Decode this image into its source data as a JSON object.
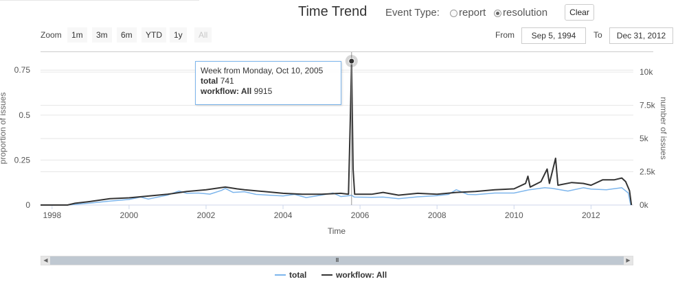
{
  "header": {
    "title": "Time Trend",
    "event_type_label": "Event Type:",
    "event_types": [
      {
        "label": "report",
        "checked": false
      },
      {
        "label": "resolution",
        "checked": true
      }
    ],
    "clear_label": "Clear"
  },
  "zoom": {
    "label": "Zoom",
    "buttons": [
      "1m",
      "3m",
      "6m",
      "YTD",
      "1y",
      "All"
    ],
    "active": "All"
  },
  "range": {
    "from_label": "From",
    "from_value": "Sep 5, 1994",
    "to_label": "To",
    "to_value": "Dec 31, 2012"
  },
  "tooltip": {
    "header": "Week from Monday, Oct 10, 2005",
    "rows": [
      {
        "label": "total",
        "value": "741"
      },
      {
        "label": "workflow: All",
        "value": "9915"
      }
    ]
  },
  "scrollbar": {
    "grip": "III"
  },
  "colors": {
    "total": "#7cb5ec",
    "workflow": "#333333",
    "grid": "#e6e6e6"
  },
  "chart_data": {
    "type": "line",
    "title": "Time Trend",
    "xlabel": "Time",
    "ylabel_left": "proportion of issues",
    "ylabel_right": "number of issues",
    "x_ticks": [
      "1998",
      "2000",
      "2002",
      "2004",
      "2006",
      "2008",
      "2010",
      "2012"
    ],
    "y_left_ticks": [
      "0",
      "0.25",
      "0.5",
      "0.75"
    ],
    "y_right_ticks": [
      "0k",
      "2.5k",
      "5k",
      "7.5k",
      "10k"
    ],
    "xlim": [
      1997.7,
      2013.1
    ],
    "y_left_range": [
      0,
      0.85
    ],
    "y_right_range": [
      0,
      11500
    ],
    "grid": true,
    "legend_position": "bottom",
    "series": [
      {
        "name": "total",
        "color": "#7cb5ec",
        "axis": "right",
        "points": [
          [
            1997.7,
            0
          ],
          [
            1998.4,
            0
          ],
          [
            1998.6,
            50
          ],
          [
            1999.0,
            150
          ],
          [
            1999.5,
            300
          ],
          [
            2000.0,
            420
          ],
          [
            2000.3,
            600
          ],
          [
            2000.5,
            450
          ],
          [
            2001.0,
            750
          ],
          [
            2001.3,
            1050
          ],
          [
            2001.5,
            880
          ],
          [
            2001.8,
            900
          ],
          [
            2002.1,
            820
          ],
          [
            2002.4,
            1100
          ],
          [
            2002.5,
            1250
          ],
          [
            2002.7,
            950
          ],
          [
            2003.0,
            1000
          ],
          [
            2003.3,
            800
          ],
          [
            2003.6,
            750
          ],
          [
            2004.0,
            680
          ],
          [
            2004.3,
            800
          ],
          [
            2004.6,
            560
          ],
          [
            2005.0,
            750
          ],
          [
            2005.3,
            900
          ],
          [
            2005.5,
            640
          ],
          [
            2005.72,
            700
          ],
          [
            2005.78,
            741
          ],
          [
            2005.85,
            600
          ],
          [
            2006.3,
            580
          ],
          [
            2006.6,
            600
          ],
          [
            2007.0,
            480
          ],
          [
            2007.5,
            620
          ],
          [
            2008.0,
            700
          ],
          [
            2008.3,
            800
          ],
          [
            2008.5,
            1150
          ],
          [
            2008.8,
            800
          ],
          [
            2009.0,
            780
          ],
          [
            2009.5,
            900
          ],
          [
            2010.0,
            900
          ],
          [
            2010.4,
            1150
          ],
          [
            2010.8,
            1300
          ],
          [
            2011.0,
            1250
          ],
          [
            2011.4,
            1050
          ],
          [
            2011.8,
            1300
          ],
          [
            2012.0,
            1200
          ],
          [
            2012.4,
            1150
          ],
          [
            2012.8,
            1300
          ],
          [
            2012.97,
            900
          ],
          [
            2013.03,
            0
          ]
        ]
      },
      {
        "name": "workflow: All",
        "color": "#333333",
        "axis": "left",
        "points": [
          [
            1997.7,
            0
          ],
          [
            1998.4,
            0
          ],
          [
            1998.6,
            0.01
          ],
          [
            1999.0,
            0.02
          ],
          [
            1999.5,
            0.035
          ],
          [
            2000.0,
            0.04
          ],
          [
            2000.5,
            0.05
          ],
          [
            2001.0,
            0.06
          ],
          [
            2001.5,
            0.075
          ],
          [
            2002.0,
            0.085
          ],
          [
            2002.5,
            0.1
          ],
          [
            2002.8,
            0.09
          ],
          [
            2003.0,
            0.085
          ],
          [
            2003.5,
            0.075
          ],
          [
            2004.0,
            0.065
          ],
          [
            2004.5,
            0.06
          ],
          [
            2005.0,
            0.06
          ],
          [
            2005.5,
            0.065
          ],
          [
            2005.7,
            0.06
          ],
          [
            2005.75,
            0.5
          ],
          [
            2005.78,
            0.8
          ],
          [
            2005.82,
            0.2
          ],
          [
            2005.86,
            0.06
          ],
          [
            2006.3,
            0.06
          ],
          [
            2006.6,
            0.07
          ],
          [
            2007.0,
            0.055
          ],
          [
            2007.5,
            0.065
          ],
          [
            2008.0,
            0.06
          ],
          [
            2008.5,
            0.07
          ],
          [
            2009.0,
            0.075
          ],
          [
            2009.5,
            0.085
          ],
          [
            2010.0,
            0.09
          ],
          [
            2010.3,
            0.12
          ],
          [
            2010.36,
            0.16
          ],
          [
            2010.42,
            0.1
          ],
          [
            2010.7,
            0.13
          ],
          [
            2010.86,
            0.2
          ],
          [
            2010.92,
            0.12
          ],
          [
            2011.08,
            0.26
          ],
          [
            2011.14,
            0.11
          ],
          [
            2011.5,
            0.125
          ],
          [
            2011.8,
            0.12
          ],
          [
            2012.0,
            0.11
          ],
          [
            2012.3,
            0.14
          ],
          [
            2012.6,
            0.14
          ],
          [
            2012.8,
            0.15
          ],
          [
            2012.9,
            0.13
          ],
          [
            2013.0,
            0.08
          ],
          [
            2013.05,
            0
          ]
        ]
      }
    ],
    "hover": {
      "x": 2005.78
    }
  }
}
